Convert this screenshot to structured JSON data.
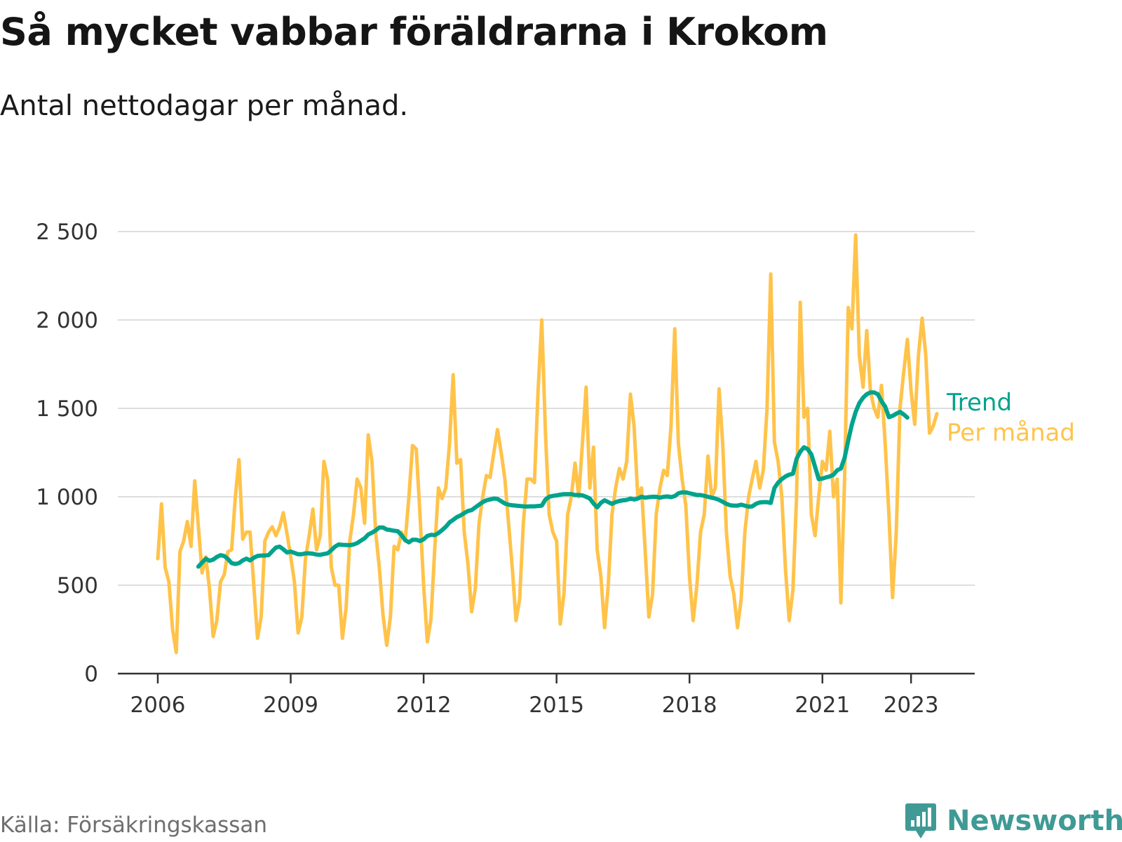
{
  "header": {
    "title": "Så mycket vabbar föräldrarna i Krokom",
    "subtitle": "Antal nettodagar per månad."
  },
  "footer": {
    "source": "Källa: Försäkringskassan",
    "brand": "Newsworthy"
  },
  "colors": {
    "per_month": "#FFC34A",
    "trend": "#00A38C",
    "grid": "#dedede",
    "axis": "#333333",
    "brand": "#3f9a95"
  },
  "chart_data": {
    "type": "line",
    "title": "Så mycket vabbar föräldrarna i Krokom",
    "subtitle": "Antal nettodagar per månad.",
    "xlabel": "",
    "ylabel": "",
    "x_range": [
      2006.0,
      2023.583
    ],
    "ylim": [
      0,
      2500
    ],
    "y_ticks": [
      0,
      500,
      1000,
      1500,
      2000,
      2500
    ],
    "y_tick_labels": [
      "0",
      "500",
      "1 000",
      "1 500",
      "2 000",
      "2 500"
    ],
    "x_ticks": [
      2006,
      2009,
      2012,
      2015,
      2018,
      2021,
      2023
    ],
    "x_tick_labels": [
      "2006",
      "2009",
      "2012",
      "2015",
      "2018",
      "2021",
      "2023"
    ],
    "grid": true,
    "legend": "right, inline at line ends",
    "series": [
      {
        "name": "Per månad",
        "start": 2006.0,
        "step_months": 1,
        "values": [
          650,
          960,
          600,
          520,
          250,
          120,
          690,
          750,
          860,
          720,
          1090,
          830,
          570,
          660,
          480,
          210,
          300,
          520,
          560,
          690,
          700,
          1000,
          1210,
          760,
          800,
          800,
          500,
          200,
          320,
          750,
          800,
          830,
          780,
          830,
          910,
          790,
          660,
          520,
          230,
          320,
          650,
          780,
          930,
          700,
          780,
          1200,
          1100,
          600,
          500,
          500,
          200,
          370,
          750,
          900,
          1100,
          1050,
          850,
          1350,
          1200,
          800,
          600,
          330,
          160,
          320,
          720,
          700,
          800,
          750,
          1000,
          1290,
          1270,
          900,
          500,
          180,
          310,
          700,
          1050,
          990,
          1050,
          1300,
          1690,
          1190,
          1210,
          800,
          620,
          350,
          480,
          850,
          1000,
          1120,
          1110,
          1250,
          1380,
          1250,
          1100,
          850,
          600,
          300,
          420,
          850,
          1100,
          1100,
          1080,
          1600,
          2000,
          1350,
          900,
          800,
          750,
          280,
          450,
          900,
          1000,
          1190,
          1000,
          1300,
          1620,
          1050,
          1280,
          700,
          550,
          260,
          500,
          900,
          1050,
          1160,
          1100,
          1200,
          1580,
          1400,
          1000,
          1050,
          700,
          320,
          450,
          900,
          1050,
          1150,
          1120,
          1400,
          1950,
          1300,
          1100,
          950,
          550,
          300,
          500,
          800,
          900,
          1230,
          1000,
          1050,
          1610,
          1300,
          800,
          550,
          450,
          260,
          420,
          800,
          1000,
          1100,
          1200,
          1050,
          1150,
          1500,
          2260,
          1310,
          1200,
          1000,
          590,
          300,
          470,
          1000,
          2100,
          1450,
          1500,
          900,
          780,
          1000,
          1200,
          1150,
          1370,
          1000,
          1100,
          400,
          1100,
          2070,
          1950,
          2480,
          1800,
          1620,
          1940,
          1600,
          1500,
          1450,
          1630,
          1300,
          900,
          430,
          800,
          1500,
          1700,
          1890,
          1600,
          1410,
          1800,
          2010,
          1800,
          1360,
          1400,
          1470
        ]
      },
      {
        "name": "Trend",
        "start": 2006.917,
        "step_months": 1,
        "values": [
          605,
          628,
          650,
          638,
          645,
          660,
          670,
          665,
          648,
          625,
          620,
          625,
          640,
          650,
          640,
          655,
          665,
          668,
          668,
          670,
          692,
          713,
          718,
          703,
          685,
          690,
          683,
          675,
          675,
          680,
          680,
          678,
          673,
          672,
          676,
          680,
          698,
          718,
          730,
          728,
          727,
          726,
          730,
          738,
          752,
          765,
          787,
          797,
          810,
          826,
          826,
          815,
          812,
          808,
          805,
          783,
          755,
          742,
          757,
          757,
          750,
          760,
          778,
          785,
          783,
          795,
          812,
          830,
          855,
          870,
          885,
          895,
          908,
          920,
          925,
          940,
          955,
          970,
          980,
          985,
          990,
          988,
          975,
          962,
          955,
          952,
          950,
          948,
          946,
          945,
          946,
          946,
          948,
          950,
          985,
          1000,
          1005,
          1008,
          1012,
          1015,
          1015,
          1015,
          1010,
          1010,
          1008,
          1000,
          990,
          962,
          940,
          966,
          980,
          970,
          960,
          970,
          976,
          980,
          982,
          990,
          985,
          990,
          1000,
          995,
          998,
          1000,
          1000,
          995,
          1000,
          1002,
          998,
          1004,
          1020,
          1025,
          1025,
          1020,
          1015,
          1010,
          1010,
          1005,
          1000,
          995,
          990,
          982,
          972,
          960,
          952,
          950,
          950,
          955,
          950,
          944,
          946,
          960,
          968,
          970,
          970,
          965,
          1050,
          1080,
          1100,
          1115,
          1125,
          1130,
          1215,
          1255,
          1280,
          1270,
          1240,
          1170,
          1100,
          1103,
          1110,
          1115,
          1125,
          1150,
          1160,
          1220,
          1320,
          1410,
          1480,
          1530,
          1560,
          1580,
          1590,
          1590,
          1580,
          1540,
          1510,
          1450,
          1458,
          1470,
          1480,
          1466,
          1448
        ]
      }
    ]
  }
}
